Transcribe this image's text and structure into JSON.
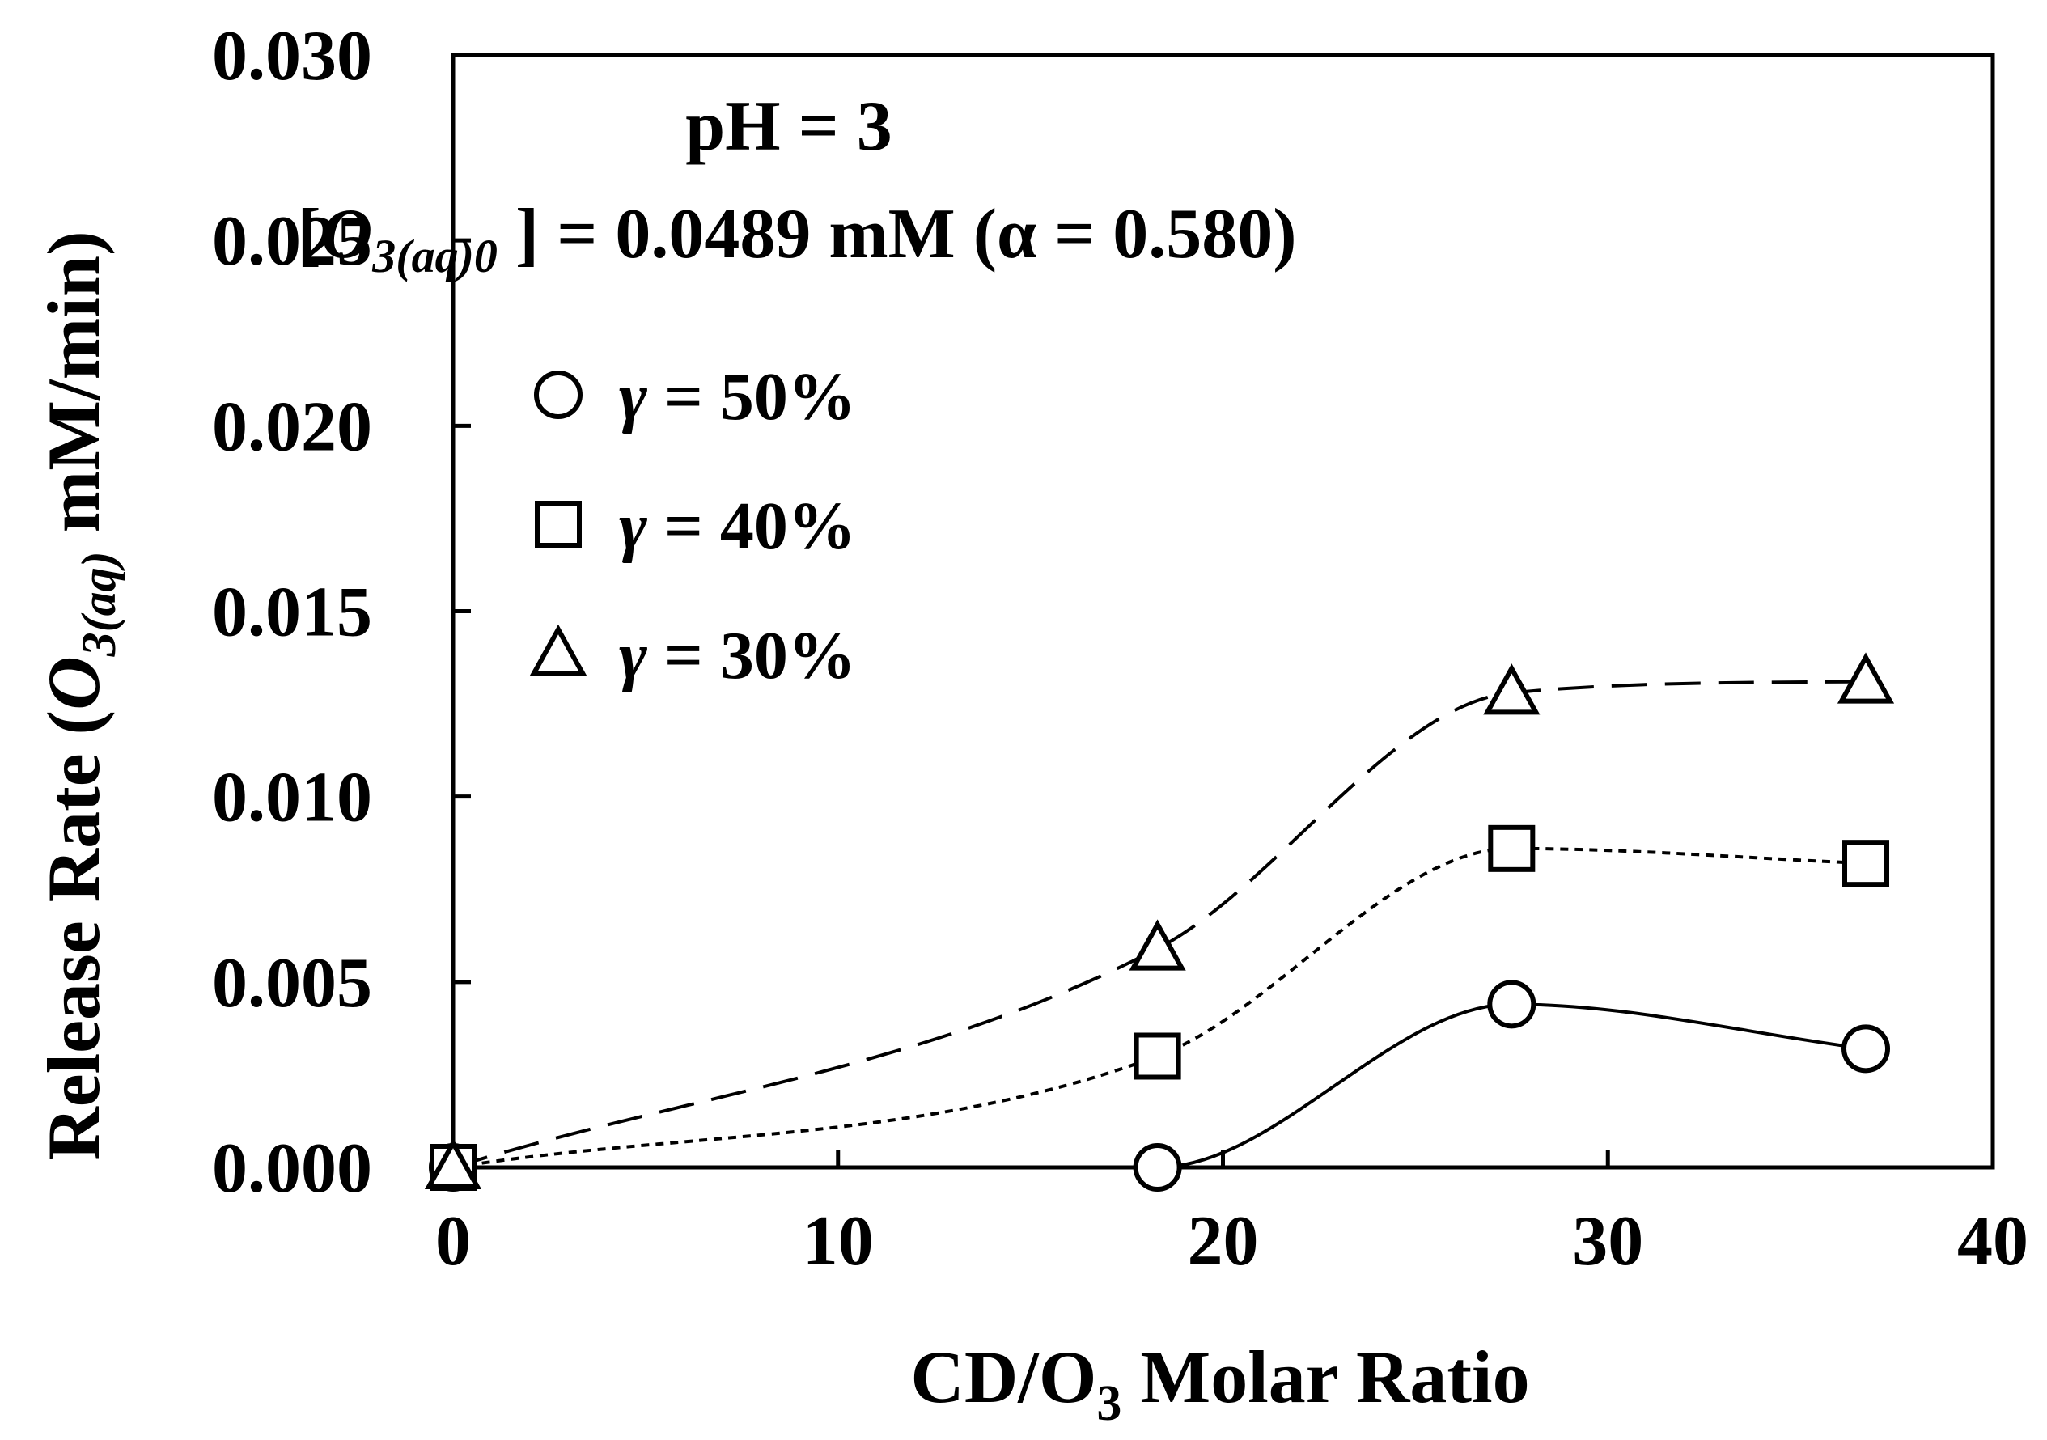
{
  "chart_data": {
    "type": "line",
    "title": "",
    "xlabel": "CD/O3 Molar Ratio",
    "xlabel_parts": {
      "main": "CD/O",
      "sub": "3",
      "rest": " Molar Ratio"
    },
    "ylabel": "Release Rate (O3(aq) mM/min)",
    "ylabel_parts": {
      "pre": "Release Rate (",
      "italic": "O",
      "sub": "3(aq)",
      "post": " mM/min)"
    },
    "xlim": [
      0,
      40
    ],
    "ylim": [
      0,
      0.03
    ],
    "x_ticks": [
      "0",
      "10",
      "20",
      "30",
      "40"
    ],
    "y_ticks": [
      "0.000",
      "0.005",
      "0.010",
      "0.015",
      "0.020",
      "0.025",
      "0.030"
    ],
    "grid": false,
    "legend_position": "top-left",
    "annotations": {
      "line1": "pH = 3",
      "line2_open": "[",
      "line2_italic": "O",
      "line2_sub": "3(aq)0",
      "line2_rest": " ] = 0.0489 mM (α = 0.580)"
    },
    "series": [
      {
        "name": "γ = 50%",
        "greek": "γ",
        "rest": " = 50%",
        "marker": "circle",
        "line_style": "solid",
        "x": [
          0,
          18.3,
          27.5,
          36.7
        ],
        "y": [
          0.0,
          0.0,
          0.0044,
          0.0032
        ]
      },
      {
        "name": "γ = 40%",
        "greek": "γ",
        "rest": " = 40%",
        "marker": "square",
        "line_style": "dotted",
        "x": [
          0,
          18.3,
          27.5,
          36.7
        ],
        "y": [
          0.0,
          0.003,
          0.0086,
          0.0082
        ]
      },
      {
        "name": "γ = 30%",
        "greek": "γ",
        "rest": " = 30%",
        "marker": "triangle",
        "line_style": "dashed",
        "x": [
          0,
          18.3,
          27.5,
          36.7
        ],
        "y": [
          0.0,
          0.0059,
          0.0128,
          0.0131
        ]
      }
    ]
  }
}
